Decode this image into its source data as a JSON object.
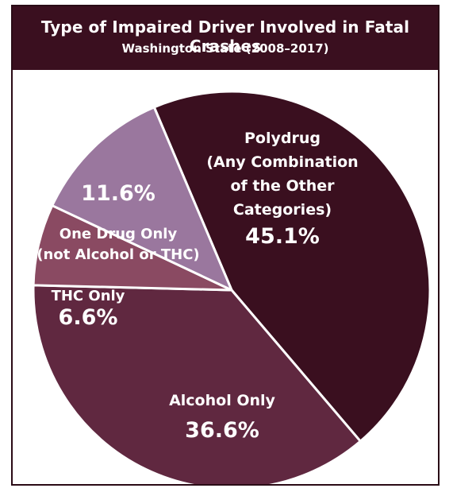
{
  "header": {
    "title": "Type of Impaired Driver Involved in Fatal Crashes",
    "subtitle": "Washington State (2008–2017)"
  },
  "chart_data": {
    "type": "pie",
    "title": "Type of Impaired Driver Involved in Fatal Crashes",
    "subtitle": "Washington State (2008–2017)",
    "slices": [
      {
        "name": "Polydrug",
        "label_lines": [
          "Polydrug",
          "(Any Combination",
          "of the Other",
          "Categories)"
        ],
        "value": 45.1,
        "pct_text": "45.1%",
        "color": "#3a0f1f"
      },
      {
        "name": "Alcohol Only",
        "label_lines": [
          "Alcohol Only"
        ],
        "value": 36.6,
        "pct_text": "36.6%",
        "color": "#602840"
      },
      {
        "name": "THC Only",
        "label_lines": [
          "THC Only"
        ],
        "value": 6.6,
        "pct_text": "6.6%",
        "color": "#8a4a62"
      },
      {
        "name": "One Drug Only",
        "label_lines": [
          "One Drug Only",
          "(not Alcohol or THC)"
        ],
        "value": 11.6,
        "pct_text": "11.6%",
        "color": "#9a779e"
      }
    ]
  }
}
